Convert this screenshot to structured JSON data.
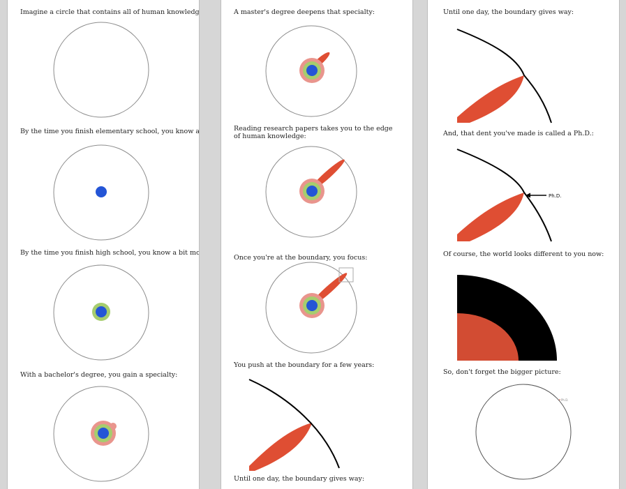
{
  "colors": {
    "blue": "#2455d6",
    "green": "#a6cd6e",
    "pink": "#e9958d",
    "red": "#df4e33",
    "black": "#000000",
    "circle_stroke": "#8c8c8c"
  },
  "column1": {
    "caption1": "Imagine a circle that contains all of human knowledge:",
    "caption2": "By the time you finish elementary school, you know a little:",
    "caption3": "By the time you finish high school, you know a bit more:",
    "caption4": "With a bachelor's degree, you gain a specialty:"
  },
  "column2": {
    "caption1": "A master's degree deepens that specialty:",
    "caption2": "Reading research papers takes you to the edge of human knowledge:",
    "caption3": "Once you're at the boundary, you focus:",
    "caption4": "You push at the boundary for a few years:",
    "caption5": "Until one day, the boundary gives way:"
  },
  "column3": {
    "caption1": "Until one day, the boundary gives way:",
    "caption2": "And, that dent you've made is called a Ph.D.:",
    "phd_label": "Ph.D.",
    "caption3": "Of course, the world looks different to you now:",
    "caption4": "So, don't forget the bigger picture:",
    "tiny_label": "Ph.D."
  }
}
